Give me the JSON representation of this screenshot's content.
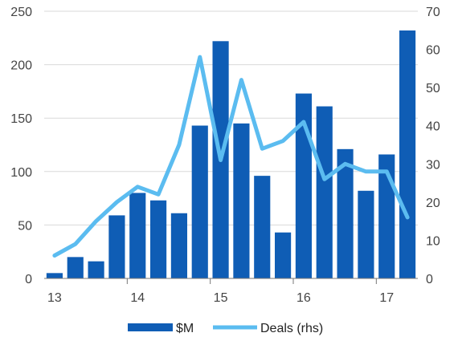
{
  "chart_data": {
    "type": "bar",
    "x": [
      13.0,
      13.25,
      13.5,
      13.75,
      14.0,
      14.25,
      14.5,
      14.75,
      15.0,
      15.25,
      15.5,
      15.75,
      16.0,
      16.25,
      16.5,
      16.75,
      17.0,
      17.25
    ],
    "xtick_labels": [
      "13",
      "14",
      "15",
      "16",
      "17"
    ],
    "series": [
      {
        "name": "$M",
        "type": "bar",
        "axis": "left",
        "color": "#0f5db5",
        "values": [
          5,
          20,
          16,
          59,
          80,
          73,
          61,
          143,
          222,
          145,
          96,
          43,
          173,
          161,
          121,
          82,
          116,
          232
        ]
      },
      {
        "name": "Deals (rhs)",
        "type": "line",
        "axis": "right",
        "color": "#5bbcf0",
        "values": [
          6,
          9,
          15,
          20,
          24,
          22,
          35,
          58,
          31,
          52,
          34,
          36,
          41,
          26,
          30,
          28,
          28,
          16
        ]
      }
    ],
    "ylim_left": [
      0,
      250
    ],
    "yticks_left": [
      "0",
      "50",
      "100",
      "150",
      "200",
      "250"
    ],
    "ylim_right": [
      0,
      70
    ],
    "yticks_right": [
      "0",
      "10",
      "20",
      "30",
      "40",
      "50",
      "60",
      "70"
    ],
    "grid": true,
    "legend": "bottom-center"
  }
}
